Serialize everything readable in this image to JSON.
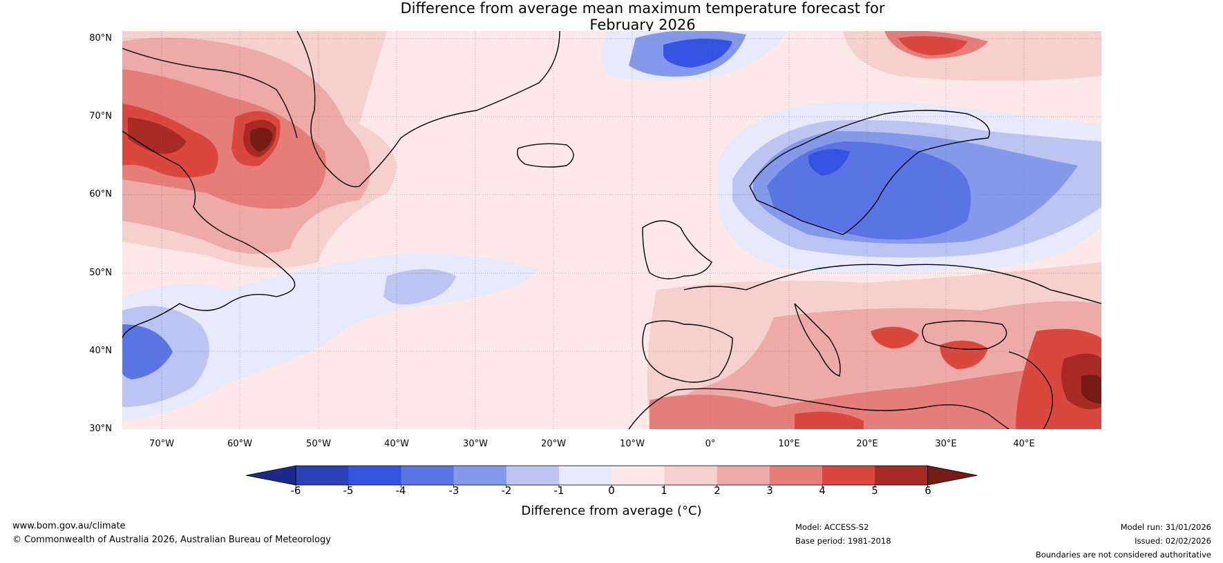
{
  "title": {
    "line1": "Difference from average mean maximum temperature forecast for",
    "line2": "February 2026"
  },
  "map": {
    "region": "North Atlantic and Europe",
    "lat_labels": [
      "80°N",
      "70°N",
      "60°N",
      "50°N",
      "40°N",
      "30°N"
    ],
    "lon_labels": [
      "70°W",
      "60°W",
      "50°W",
      "40°W",
      "30°W",
      "20°W",
      "10°W",
      "0°",
      "10°E",
      "20°E",
      "30°E",
      "40°E"
    ]
  },
  "colorbar": {
    "ticks": [
      "-6",
      "-5",
      "-4",
      "-3",
      "-2",
      "-1",
      "0",
      "1",
      "2",
      "3",
      "4",
      "5",
      "6"
    ],
    "colors": [
      "#1c2a8c",
      "#2a3fb8",
      "#3353e0",
      "#5b74e4",
      "#8599ea",
      "#bcc5f2",
      "#e6eafa",
      "#fdeae8",
      "#f6d0cd",
      "#eeaaa7",
      "#e57e78",
      "#d9473e",
      "#a82a25",
      "#741b14"
    ],
    "label": "Difference from average (°C)"
  },
  "footer": {
    "url": "www.bom.gov.au/climate",
    "copyright": "© Commonwealth of Australia 2026, Australian Bureau of Meteorology",
    "model": "Model: ACCESS-S2",
    "base_period": "Base period: 1981-2018",
    "model_run": "Model run: 31/01/2026",
    "issued": "Issued: 02/02/2026",
    "disclaimer": "Boundaries are not considered authoritative"
  }
}
